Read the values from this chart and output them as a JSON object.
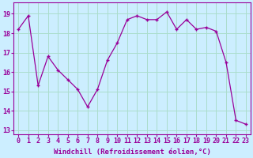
{
  "x": [
    0,
    1,
    2,
    3,
    4,
    5,
    6,
    7,
    8,
    9,
    10,
    11,
    12,
    13,
    14,
    15,
    16,
    17,
    18,
    19,
    20,
    21,
    22,
    23
  ],
  "y": [
    18.2,
    18.9,
    15.3,
    16.8,
    16.1,
    15.6,
    15.1,
    14.2,
    15.1,
    16.6,
    17.5,
    18.7,
    18.9,
    18.7,
    18.7,
    19.1,
    18.2,
    18.7,
    18.2,
    18.3,
    18.1,
    16.5,
    13.5,
    13.3
  ],
  "line_color": "#990099",
  "marker": "+",
  "marker_size": 3,
  "marker_lw": 1.0,
  "bg_color": "#cceeff",
  "grid_color": "#aaddcc",
  "xlabel": "Windchill (Refroidissement éolien,°C)",
  "ylabel_ticks": [
    13,
    14,
    15,
    16,
    17,
    18,
    19
  ],
  "xlim": [
    -0.5,
    23.5
  ],
  "ylim": [
    12.8,
    19.6
  ],
  "tick_color": "#990099",
  "label_color": "#990099",
  "font_size_label": 6.5,
  "font_size_tick": 6.0,
  "line_width": 0.9
}
